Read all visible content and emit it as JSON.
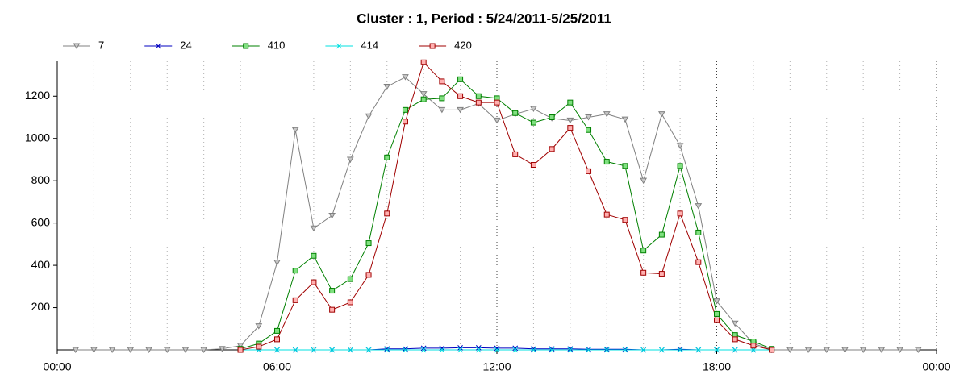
{
  "chart_data": {
    "type": "line",
    "title": "Cluster : 1, Period : 5/24/2011-5/25/2011",
    "x": [
      0.5,
      1,
      1.5,
      2,
      2.5,
      3,
      3.5,
      4,
      4.5,
      5,
      5.5,
      6,
      6.5,
      7,
      7.5,
      8,
      8.5,
      9,
      9.5,
      10,
      10.5,
      11,
      11.5,
      12,
      12.5,
      13,
      13.5,
      14,
      14.5,
      15,
      15.5,
      16,
      16.5,
      17,
      17.5,
      18,
      18.5,
      19,
      19.5,
      20,
      20.5,
      21,
      21.5,
      22,
      22.5,
      23,
      23.5
    ],
    "series": [
      {
        "name": "7",
        "color": "#808080",
        "fill": "#c8c8c8",
        "marker": "triangle-down",
        "values": [
          0,
          0,
          0,
          0,
          0,
          0,
          0,
          0,
          5,
          20,
          112,
          413,
          1040,
          575,
          635,
          900,
          1105,
          1245,
          1290,
          1210,
          1135,
          1135,
          1165,
          1085,
          1115,
          1140,
          1095,
          1085,
          1100,
          1115,
          1090,
          800,
          1115,
          965,
          680,
          230,
          125,
          30,
          0,
          0,
          0,
          0,
          0,
          0,
          0,
          0,
          0
        ]
      },
      {
        "name": "24",
        "color": "#0000c0",
        "fill": "#0000c0",
        "marker": "x",
        "values": [
          null,
          null,
          null,
          null,
          null,
          null,
          null,
          null,
          null,
          0,
          0,
          0,
          0,
          0,
          0,
          0,
          0,
          5,
          5,
          8,
          8,
          10,
          10,
          8,
          8,
          5,
          5,
          5,
          3,
          3,
          3,
          0,
          0,
          3,
          0,
          0,
          0,
          0,
          0,
          null,
          null,
          null,
          null,
          null,
          null,
          null,
          null
        ]
      },
      {
        "name": "410",
        "color": "#008000",
        "fill": "#80e080",
        "marker": "square",
        "values": [
          null,
          null,
          null,
          null,
          null,
          null,
          null,
          null,
          null,
          5,
          30,
          90,
          375,
          445,
          280,
          335,
          505,
          910,
          1135,
          1185,
          1190,
          1280,
          1200,
          1190,
          1120,
          1075,
          1100,
          1170,
          1040,
          890,
          870,
          470,
          545,
          870,
          555,
          170,
          70,
          40,
          5,
          null,
          null,
          null,
          null,
          null,
          null,
          null,
          null
        ]
      },
      {
        "name": "414",
        "color": "#00e0e0",
        "fill": "#00e0e0",
        "marker": "x",
        "values": [
          null,
          null,
          null,
          null,
          null,
          null,
          null,
          null,
          null,
          0,
          0,
          0,
          0,
          0,
          0,
          0,
          0,
          0,
          0,
          0,
          0,
          0,
          0,
          0,
          0,
          0,
          0,
          0,
          0,
          0,
          0,
          0,
          0,
          0,
          0,
          0,
          0,
          0,
          0,
          null,
          null,
          null,
          null,
          null,
          null,
          null,
          null
        ]
      },
      {
        "name": "420",
        "color": "#a00000",
        "fill": "#ffb0b0",
        "marker": "square",
        "values": [
          null,
          null,
          null,
          null,
          null,
          null,
          null,
          null,
          null,
          0,
          15,
          50,
          235,
          320,
          190,
          225,
          355,
          645,
          1080,
          1360,
          1270,
          1200,
          1170,
          1170,
          925,
          875,
          950,
          1050,
          845,
          640,
          615,
          365,
          360,
          645,
          415,
          140,
          50,
          20,
          0,
          null,
          null,
          null,
          null,
          null,
          null,
          null,
          null
        ]
      }
    ],
    "xlim": [
      0,
      24
    ],
    "xticks": [
      {
        "value": 0,
        "label": "00:00"
      },
      {
        "value": 6,
        "label": "06:00"
      },
      {
        "value": 12,
        "label": "12:00"
      },
      {
        "value": 18,
        "label": "18:00"
      },
      {
        "value": 24,
        "label": "00:00"
      }
    ],
    "xminor": [
      1,
      2,
      3,
      4,
      5,
      7,
      8,
      9,
      10,
      11,
      13,
      14,
      15,
      16,
      17,
      19,
      20,
      21,
      22,
      23
    ],
    "ylim": [
      0,
      1365
    ],
    "yticks": [
      200,
      400,
      600,
      800,
      1000,
      1200
    ],
    "grid": true,
    "legend": "top-left"
  }
}
